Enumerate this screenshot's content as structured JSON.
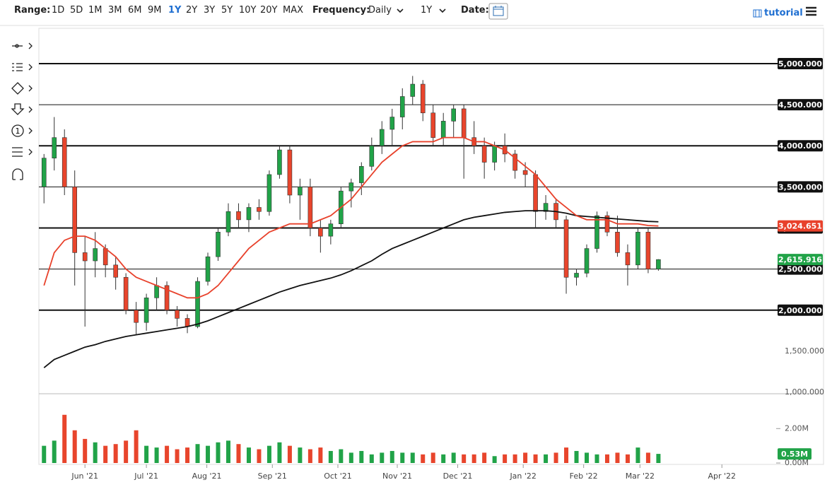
{
  "toolbar": {
    "range_label": "Range:",
    "ranges": [
      "1D",
      "5D",
      "1M",
      "3M",
      "6M",
      "9M",
      "1Y",
      "2Y",
      "3Y",
      "5Y",
      "10Y",
      "20Y",
      "MAX"
    ],
    "active_range": "1Y",
    "frequency_label": "Frequency:",
    "frequency": "Daily",
    "period": "1Y",
    "date_label": "Date:",
    "tutorial": "tutorial",
    "icon_number": "1"
  },
  "chart_data": {
    "type": "candlestick",
    "xlim": [
      -0.5,
      71.5
    ],
    "xticks": [
      {
        "value": 4,
        "label": "Jun '21"
      },
      {
        "value": 10,
        "label": "Jul '21"
      },
      {
        "value": 15.9,
        "label": "Aug '21"
      },
      {
        "value": 22.3,
        "label": "Sep '21"
      },
      {
        "value": 28.7,
        "label": "Oct '21"
      },
      {
        "value": 34.5,
        "label": "Nov '21"
      },
      {
        "value": 40.4,
        "label": "Dec '21"
      },
      {
        "value": 46.8,
        "label": "Jan '22"
      },
      {
        "value": 52.7,
        "label": "Feb '22"
      },
      {
        "value": 58.2,
        "label": "Mar '22"
      },
      {
        "value": 66.2,
        "label": "Apr '22"
      }
    ],
    "ylim": [
      983,
      5430
    ],
    "yticks": [
      {
        "value": 1000,
        "label": "1,000.000"
      },
      {
        "value": 1500,
        "label": "1,500.000"
      },
      {
        "value": 2000,
        "label": "2,000.000",
        "line": "thick"
      },
      {
        "value": 2500,
        "label": "2,500.000",
        "line": "thin"
      },
      {
        "value": 3000,
        "label": "3,000.000",
        "line": "thick"
      },
      {
        "value": 3500,
        "label": "3,500.000",
        "line": "thin"
      },
      {
        "value": 4000,
        "label": "4,000.000",
        "line": "thick"
      },
      {
        "value": 4500,
        "label": "4,500.000",
        "line": "thin"
      },
      {
        "value": 5000,
        "label": "5,000.000",
        "line": "thick"
      }
    ],
    "up_color": "#21a348",
    "down_color": "#e8452c",
    "open": [
      3500,
      3850,
      4100,
      3500,
      2700,
      2600,
      2750,
      2550,
      2400,
      2000,
      1850,
      2150,
      2300,
      2000,
      1900,
      1800,
      2350,
      2650,
      2950,
      3200,
      3100,
      3250,
      3200,
      3650,
      3950,
      3400,
      3500,
      3000,
      2900,
      3050,
      3450,
      3550,
      3750,
      4000,
      4200,
      4350,
      4600,
      4750,
      4400,
      4100,
      4300,
      4450,
      4100,
      4000,
      3800,
      4000,
      3900,
      3700,
      3650,
      3200,
      3300,
      3100,
      2400,
      2450,
      2750,
      3150,
      2950,
      2700,
      2550,
      2950,
      2500
    ],
    "high": [
      3900,
      4350,
      4200,
      3700,
      2900,
      2950,
      2800,
      2650,
      2450,
      2100,
      2200,
      2400,
      2350,
      2050,
      1950,
      2400,
      2700,
      3000,
      3300,
      3300,
      3300,
      3350,
      3700,
      4000,
      4000,
      3600,
      3600,
      3100,
      3100,
      3500,
      3600,
      3800,
      4100,
      4300,
      4450,
      4700,
      4850,
      4800,
      4500,
      4400,
      4500,
      4500,
      4300,
      4100,
      4050,
      4150,
      3950,
      3800,
      3700,
      3400,
      3350,
      3150,
      2500,
      2800,
      3200,
      3200,
      3150,
      2800,
      3000,
      3000,
      2620
    ],
    "low": [
      3300,
      3700,
      3400,
      2300,
      1800,
      2400,
      2400,
      2250,
      1950,
      1700,
      1750,
      2000,
      1950,
      1800,
      1720,
      1780,
      2300,
      2600,
      2900,
      3000,
      2950,
      3100,
      3150,
      3600,
      3300,
      3100,
      2900,
      2700,
      2800,
      3000,
      3250,
      3400,
      3700,
      3900,
      4000,
      4200,
      4500,
      4300,
      4000,
      4000,
      4100,
      3600,
      3900,
      3600,
      3700,
      3800,
      3600,
      3500,
      3000,
      3100,
      3000,
      2200,
      2300,
      2400,
      2700,
      2900,
      2650,
      2300,
      2500,
      2450,
      2480
    ],
    "close": [
      3850,
      4100,
      3500,
      2700,
      2600,
      2750,
      2550,
      2400,
      2000,
      1850,
      2150,
      2300,
      2000,
      1900,
      1800,
      2350,
      2650,
      2950,
      3200,
      3100,
      3250,
      3200,
      3650,
      3950,
      3400,
      3500,
      3000,
      2900,
      3050,
      3450,
      3550,
      3750,
      4000,
      4200,
      4350,
      4600,
      4750,
      4400,
      4100,
      4300,
      4450,
      4100,
      4000,
      3800,
      4000,
      3900,
      3700,
      3650,
      3200,
      3300,
      3100,
      2400,
      2450,
      2750,
      3150,
      2950,
      2700,
      2550,
      2950,
      2500,
      2615.916
    ],
    "last_close_label": "2,615.916",
    "series": [
      {
        "color": "#111111",
        "values": [
          1300,
          1400,
          1450,
          1500,
          1550,
          1580,
          1620,
          1650,
          1680,
          1700,
          1720,
          1740,
          1760,
          1780,
          1800,
          1830,
          1870,
          1920,
          1970,
          2020,
          2070,
          2120,
          2170,
          2220,
          2260,
          2300,
          2330,
          2360,
          2390,
          2430,
          2480,
          2540,
          2600,
          2680,
          2750,
          2800,
          2850,
          2900,
          2950,
          3000,
          3050,
          3100,
          3130,
          3150,
          3170,
          3190,
          3200,
          3210,
          3210,
          3210,
          3200,
          3180,
          3150,
          3140,
          3130,
          3120,
          3110,
          3100,
          3090,
          3080,
          3075
        ]
      },
      {
        "color": "#e8412b",
        "values": [
          2300,
          2700,
          2850,
          2900,
          2900,
          2850,
          2750,
          2650,
          2500,
          2400,
          2350,
          2300,
          2250,
          2200,
          2150,
          2150,
          2200,
          2300,
          2450,
          2600,
          2750,
          2850,
          2950,
          3000,
          3050,
          3050,
          3050,
          3100,
          3150,
          3250,
          3350,
          3500,
          3650,
          3800,
          3900,
          4000,
          4050,
          4050,
          4050,
          4100,
          4100,
          4100,
          4050,
          4050,
          4000,
          3950,
          3850,
          3750,
          3650,
          3500,
          3350,
          3250,
          3150,
          3100,
          3100,
          3100,
          3050,
          3050,
          3050,
          3030,
          3024.651
        ],
        "last_label": "3,024.651"
      }
    ],
    "volume": {
      "values": [
        1.0,
        1.3,
        2.8,
        1.9,
        1.4,
        1.2,
        1.0,
        1.1,
        1.3,
        1.9,
        1.0,
        0.9,
        1.0,
        0.8,
        0.9,
        1.1,
        1.0,
        1.2,
        1.3,
        1.1,
        0.9,
        0.8,
        1.0,
        1.2,
        1.0,
        0.9,
        0.8,
        0.9,
        0.7,
        0.8,
        0.6,
        0.7,
        0.5,
        0.6,
        0.7,
        0.6,
        0.6,
        0.5,
        0.6,
        0.5,
        0.6,
        0.5,
        0.5,
        0.6,
        0.4,
        0.5,
        0.5,
        0.6,
        0.5,
        0.5,
        0.6,
        0.9,
        0.7,
        0.6,
        0.5,
        0.5,
        0.6,
        0.5,
        0.9,
        0.6,
        0.53
      ],
      "ylim": [
        0,
        3.9
      ],
      "yticks": [
        {
          "value": 0,
          "label": "0.00M"
        },
        {
          "value": 2,
          "label": "2.00M"
        }
      ],
      "last_label": "0.53M"
    }
  }
}
